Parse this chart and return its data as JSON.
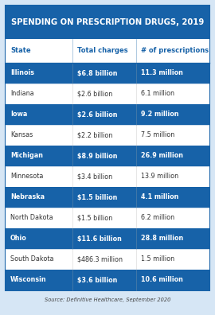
{
  "title": "SPENDING ON PRESCRIPTION DRUGS, 2019",
  "title_bg": "#1762a8",
  "title_color": "#ffffff",
  "header": [
    "State",
    "Total charges",
    "# of prescriptions"
  ],
  "header_text_color": "#1762a8",
  "rows": [
    {
      "state": "Illinois",
      "charges": "$6.8 billion",
      "prescriptions": "11.3 million",
      "highlight": true
    },
    {
      "state": "Indiana",
      "charges": "$2.6 billion",
      "prescriptions": "6.1 million",
      "highlight": false
    },
    {
      "state": "Iowa",
      "charges": "$2.6 billion",
      "prescriptions": "9.2 million",
      "highlight": true
    },
    {
      "state": "Kansas",
      "charges": "$2.2 billion",
      "prescriptions": "7.5 million",
      "highlight": false
    },
    {
      "state": "Michigan",
      "charges": "$8.9 billion",
      "prescriptions": "26.9 million",
      "highlight": true
    },
    {
      "state": "Minnesota",
      "charges": "$3.4 billion",
      "prescriptions": "13.9 million",
      "highlight": false
    },
    {
      "state": "Nebraska",
      "charges": "$1.5 billion",
      "prescriptions": "4.1 million",
      "highlight": true
    },
    {
      "state": "North Dakota",
      "charges": "$1.5 billion",
      "prescriptions": "6.2 million",
      "highlight": false
    },
    {
      "state": "Ohio",
      "charges": "$11.6 billion",
      "prescriptions": "28.8 million",
      "highlight": true
    },
    {
      "state": "South Dakota",
      "charges": "$486.3 million",
      "prescriptions": "1.5 million",
      "highlight": false
    },
    {
      "state": "Wisconsin",
      "charges": "$3.6 billion",
      "prescriptions": "10.6 million",
      "highlight": true
    }
  ],
  "source": "Source: Definitive Healthcare, September 2020",
  "highlight_bg": "#1762a8",
  "highlight_text": "#ffffff",
  "normal_bg": "#ffffff",
  "normal_text": "#333333",
  "border_color": "#1762a8",
  "outer_bg": "#d6e6f5",
  "col_splits": [
    0.33,
    0.64
  ],
  "title_fontsize": 7.2,
  "header_fontsize": 6.0,
  "row_fontsize": 5.8,
  "source_fontsize": 4.8
}
